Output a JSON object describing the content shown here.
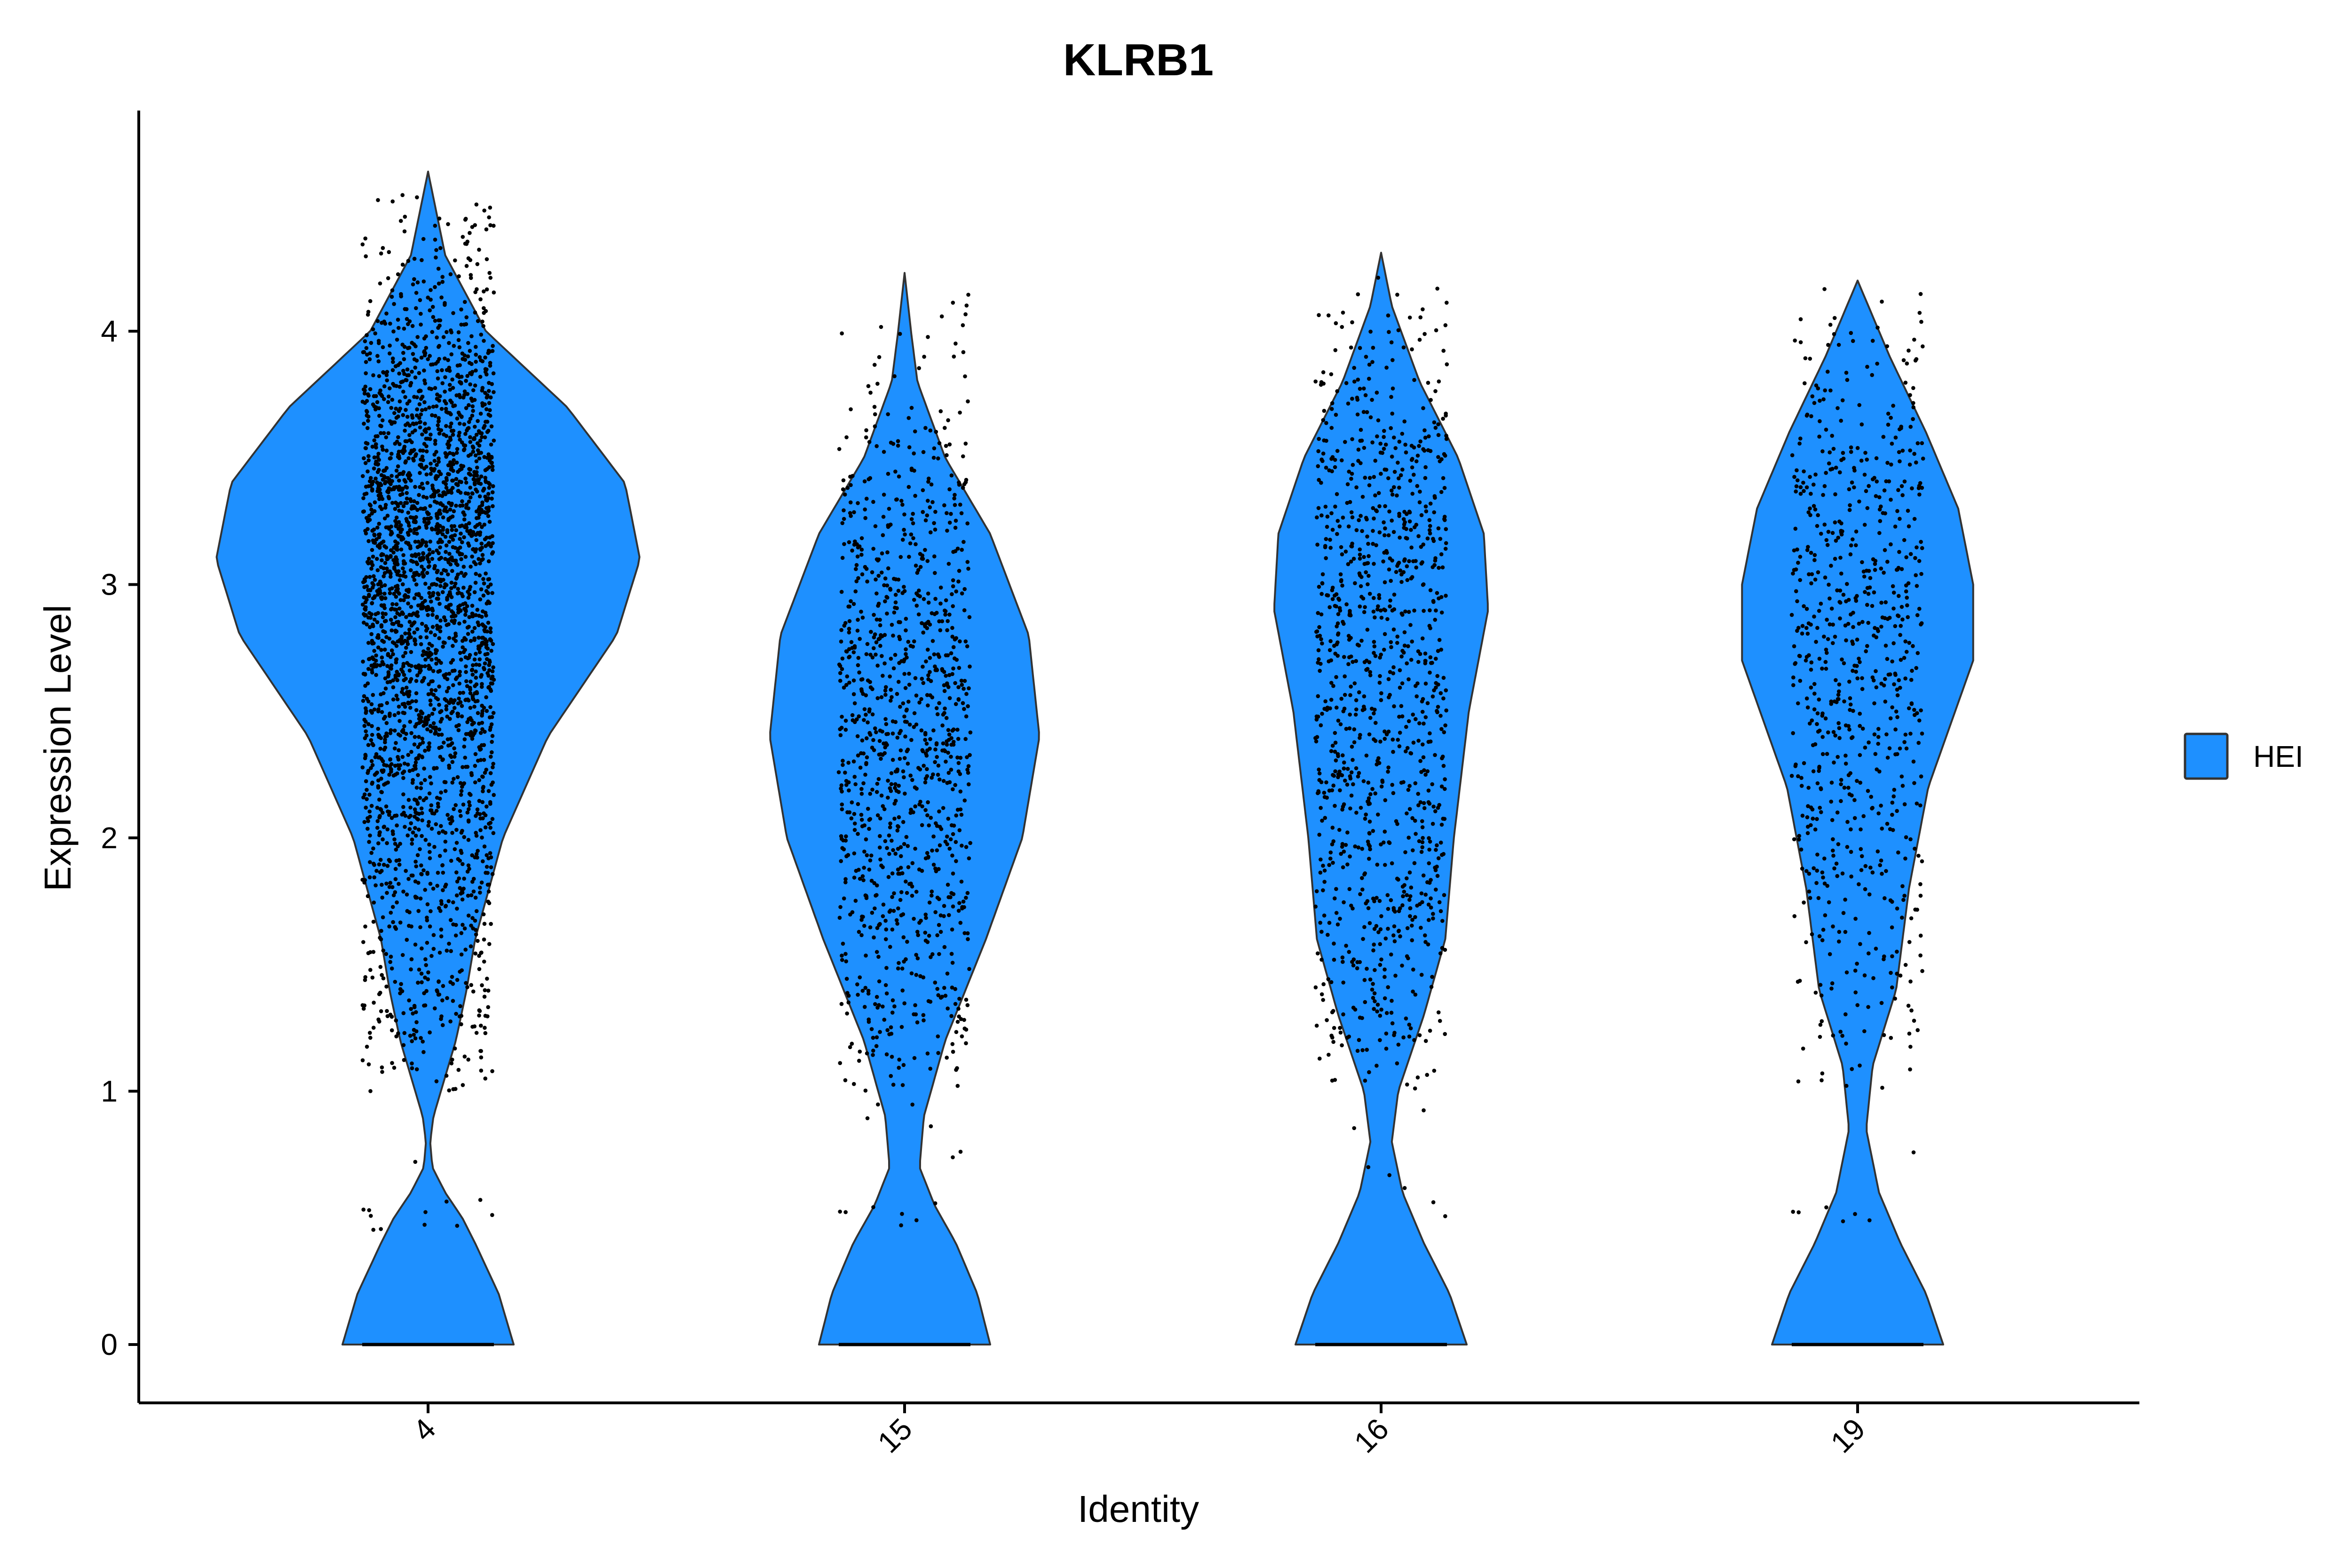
{
  "chart_data": {
    "type": "violin",
    "title": "KLRB1",
    "xlabel": "Identity",
    "ylabel": "Expression Level",
    "categories": [
      "4",
      "15",
      "16",
      "19"
    ],
    "ylim": [
      -0.23,
      4.85
    ],
    "yticks": [
      0,
      1,
      2,
      3,
      4
    ],
    "xtick_rotation": -45,
    "grid": false,
    "legend": {
      "position": "right",
      "entries": [
        {
          "name": "HEI",
          "color": "#1E90FF"
        }
      ]
    },
    "fill_color": "#1E90FF",
    "outline_color": "#333333",
    "point_color": "#000000",
    "series": [
      {
        "category": "4",
        "max": 4.63,
        "profile": [
          [
            0,
            0.4
          ],
          [
            0.2,
            0.33
          ],
          [
            0.4,
            0.22
          ],
          [
            0.5,
            0.16
          ],
          [
            0.6,
            0.08
          ],
          [
            0.7,
            0.02
          ],
          [
            0.8,
            0.01
          ],
          [
            0.9,
            0.025
          ],
          [
            1.0,
            0.06
          ],
          [
            1.2,
            0.13
          ],
          [
            1.4,
            0.18
          ],
          [
            1.6,
            0.22
          ],
          [
            2.0,
            0.35
          ],
          [
            2.4,
            0.56
          ],
          [
            2.8,
            0.88
          ],
          [
            3.1,
            0.99
          ],
          [
            3.4,
            0.92
          ],
          [
            3.7,
            0.65
          ],
          [
            4.0,
            0.27
          ],
          [
            4.3,
            0.08
          ],
          [
            4.63,
            0.0
          ]
        ],
        "n_points": 2800,
        "zero_points": true
      },
      {
        "category": "15",
        "max": 4.23,
        "profile": [
          [
            0,
            0.4
          ],
          [
            0.2,
            0.34
          ],
          [
            0.4,
            0.24
          ],
          [
            0.55,
            0.14
          ],
          [
            0.7,
            0.07
          ],
          [
            0.9,
            0.09
          ],
          [
            1.2,
            0.19
          ],
          [
            1.6,
            0.38
          ],
          [
            2.0,
            0.55
          ],
          [
            2.4,
            0.63
          ],
          [
            2.8,
            0.58
          ],
          [
            3.2,
            0.4
          ],
          [
            3.5,
            0.19
          ],
          [
            3.8,
            0.06
          ],
          [
            4.0,
            0.03
          ],
          [
            4.23,
            0.0
          ]
        ],
        "n_points": 1050,
        "zero_points": true
      },
      {
        "category": "16",
        "max": 4.31,
        "profile": [
          [
            0,
            0.4
          ],
          [
            0.2,
            0.32
          ],
          [
            0.4,
            0.2
          ],
          [
            0.6,
            0.1
          ],
          [
            0.8,
            0.05
          ],
          [
            1.0,
            0.08
          ],
          [
            1.3,
            0.2
          ],
          [
            1.6,
            0.3
          ],
          [
            2.0,
            0.34
          ],
          [
            2.5,
            0.41
          ],
          [
            2.9,
            0.5
          ],
          [
            3.2,
            0.48
          ],
          [
            3.5,
            0.36
          ],
          [
            3.8,
            0.18
          ],
          [
            4.1,
            0.05
          ],
          [
            4.31,
            0.0
          ]
        ],
        "n_points": 1050,
        "zero_points": true
      },
      {
        "category": "19",
        "max": 4.2,
        "profile": [
          [
            0,
            0.4
          ],
          [
            0.2,
            0.32
          ],
          [
            0.4,
            0.2
          ],
          [
            0.6,
            0.1
          ],
          [
            0.85,
            0.04
          ],
          [
            1.1,
            0.07
          ],
          [
            1.4,
            0.18
          ],
          [
            1.8,
            0.24
          ],
          [
            2.2,
            0.33
          ],
          [
            2.7,
            0.54
          ],
          [
            3.0,
            0.54
          ],
          [
            3.3,
            0.47
          ],
          [
            3.6,
            0.32
          ],
          [
            3.9,
            0.15
          ],
          [
            4.1,
            0.05
          ],
          [
            4.2,
            0.0
          ]
        ],
        "n_points": 720,
        "zero_points": true
      }
    ]
  }
}
